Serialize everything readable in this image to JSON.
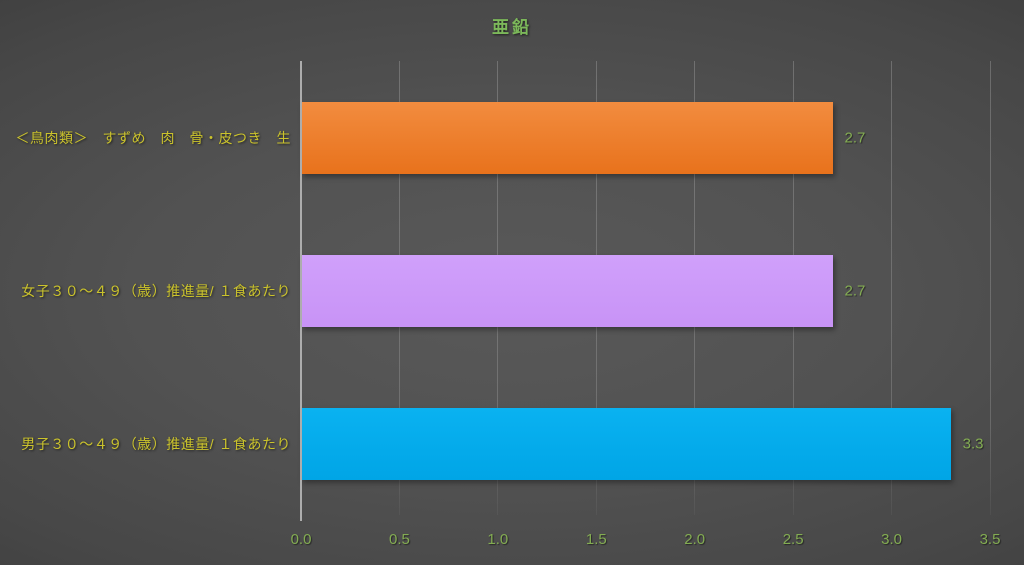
{
  "chart_data": {
    "type": "bar",
    "orientation": "horizontal",
    "title": "亜鉛",
    "categories": [
      "＜鳥肉類＞　すずめ　肉　骨・皮つき　生",
      "女子３０～４９（歳）推進量/ １食あたり",
      "男子３０～４９（歳）推進量/ １食あたり"
    ],
    "values": [
      2.7,
      2.7,
      3.3
    ],
    "value_labels": [
      "2.7",
      "2.7",
      "3.3"
    ],
    "bar_colors": [
      "#ED7D31",
      "#CC99FF",
      "#00AEEF"
    ],
    "bar_gradients": [
      [
        "#F28C3F",
        "#E8721C"
      ],
      [
        "#D0A0FB",
        "#C893F6"
      ],
      [
        "#0AB2F1",
        "#00A5E6"
      ]
    ],
    "xlabel": "",
    "ylabel": "",
    "xlim": [
      0,
      3.5
    ],
    "x_ticks": [
      0.0,
      0.5,
      1.0,
      1.5,
      2.0,
      2.5,
      3.0,
      3.5
    ],
    "x_tick_labels": [
      "0.0",
      "0.5",
      "1.0",
      "1.5",
      "2.0",
      "2.5",
      "3.0",
      "3.5"
    ],
    "grid": true,
    "legend": false,
    "category_order": "top-to-bottom"
  },
  "colors": {
    "background_center": "#575757",
    "background_corner": "#262626",
    "title": "#7CB85A",
    "tick_label": "#83AC52",
    "value_label": "#83AC52",
    "category_label": "#CBC32C",
    "axis_line": "#ADADAD",
    "gridline": "rgba(255,255,255,0.16)"
  }
}
